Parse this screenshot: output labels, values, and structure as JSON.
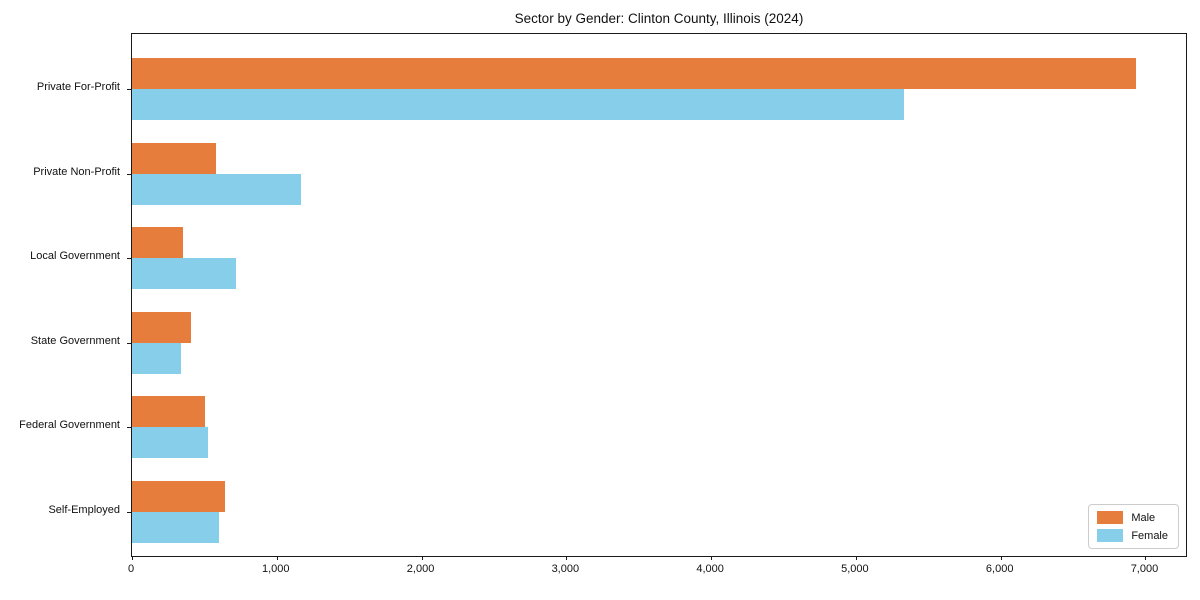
{
  "chart_data": {
    "type": "bar",
    "orientation": "horizontal",
    "title": "Sector by Gender: Clinton County, Illinois (2024)",
    "categories": [
      "Private For-Profit",
      "Private Non-Profit",
      "Local Government",
      "State Government",
      "Federal Government",
      "Self-Employed"
    ],
    "series": [
      {
        "name": "Male",
        "color": "#E77D3C",
        "values": [
          6935,
          580,
          350,
          405,
          505,
          640
        ]
      },
      {
        "name": "Female",
        "color": "#87CEEB",
        "values": [
          5330,
          1165,
          715,
          340,
          525,
          600
        ]
      }
    ],
    "xlabel": "",
    "ylabel": "",
    "xlim": [
      0,
      7280
    ],
    "xticks": {
      "values": [
        0,
        1000,
        2000,
        3000,
        4000,
        5000,
        6000,
        7000
      ],
      "labels": [
        "0",
        "1,000",
        "2,000",
        "3,000",
        "4,000",
        "5,000",
        "6,000",
        "7,000"
      ]
    },
    "grid": false,
    "legend": {
      "position": "lower right",
      "labels": [
        "Male",
        "Female"
      ]
    }
  }
}
